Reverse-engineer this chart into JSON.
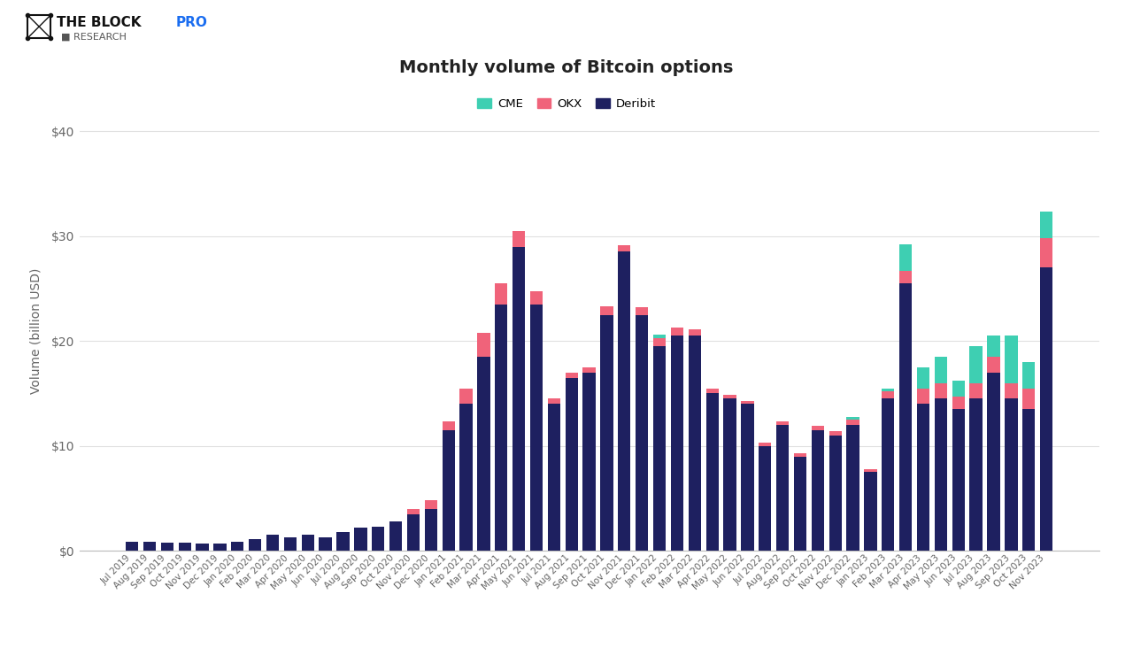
{
  "title": "Monthly volume of Bitcoin options",
  "ylabel": "Volume (billion USD)",
  "background_color": "#ffffff",
  "bar_color_deribit": "#1e2060",
  "bar_color_okx": "#f0637a",
  "bar_color_cme": "#3ecfb2",
  "categories": [
    "Jul 2019",
    "Aug 2019",
    "Sep 2019",
    "Oct 2019",
    "Nov 2019",
    "Dec 2019",
    "Jan 2020",
    "Feb 2020",
    "Mar 2020",
    "Apr 2020",
    "May 2020",
    "Jun 2020",
    "Jul 2020",
    "Aug 2020",
    "Sep 2020",
    "Oct 2020",
    "Nov 2020",
    "Dec 2020",
    "Jan 2021",
    "Feb 2021",
    "Mar 2021",
    "Apr 2021",
    "May 2021",
    "Jun 2021",
    "Jul 2021",
    "Aug 2021",
    "Sep 2021",
    "Oct 2021",
    "Nov 2021",
    "Dec 2021",
    "Jan 2022",
    "Feb 2022",
    "Mar 2022",
    "Apr 2022",
    "May 2022",
    "Jun 2022",
    "Jul 2022",
    "Aug 2022",
    "Sep 2022",
    "Oct 2022",
    "Nov 2022",
    "Dec 2022",
    "Jan 2023",
    "Feb 2023",
    "Mar 2023",
    "Apr 2023",
    "May 2023",
    "Jun 2023",
    "Jul 2023",
    "Aug 2023",
    "Sep 2023",
    "Oct 2023",
    "Nov 2023"
  ],
  "deribit": [
    0.9,
    0.85,
    0.8,
    0.75,
    0.7,
    0.65,
    0.9,
    1.1,
    1.5,
    1.3,
    1.5,
    1.3,
    1.8,
    2.2,
    2.3,
    2.8,
    3.5,
    4.0,
    11.5,
    14.0,
    18.5,
    23.5,
    29.0,
    23.5,
    14.0,
    16.5,
    17.0,
    22.5,
    28.5,
    22.5,
    19.5,
    20.5,
    20.5,
    15.0,
    14.5,
    14.0,
    10.0,
    12.0,
    9.0,
    11.5,
    11.0,
    12.0,
    7.5,
    14.5,
    25.5,
    14.0,
    14.5,
    13.5,
    14.5,
    17.0,
    14.5,
    13.5,
    27.0
  ],
  "okx": [
    0.0,
    0.0,
    0.0,
    0.0,
    0.0,
    0.0,
    0.0,
    0.0,
    0.0,
    0.0,
    0.0,
    0.0,
    0.0,
    0.0,
    0.0,
    0.0,
    0.5,
    0.8,
    0.8,
    1.5,
    2.3,
    2.0,
    1.5,
    1.2,
    0.5,
    0.5,
    0.5,
    0.8,
    0.6,
    0.7,
    0.8,
    0.8,
    0.6,
    0.5,
    0.4,
    0.3,
    0.3,
    0.3,
    0.3,
    0.4,
    0.4,
    0.5,
    0.3,
    0.7,
    1.2,
    1.5,
    1.5,
    1.2,
    1.5,
    1.5,
    1.5,
    2.0,
    2.8
  ],
  "cme": [
    0.0,
    0.0,
    0.0,
    0.0,
    0.0,
    0.0,
    0.0,
    0.0,
    0.0,
    0.0,
    0.0,
    0.0,
    0.0,
    0.0,
    0.0,
    0.0,
    0.0,
    0.0,
    0.0,
    0.0,
    0.0,
    0.0,
    0.0,
    0.0,
    0.0,
    0.0,
    0.0,
    0.0,
    0.0,
    0.0,
    0.3,
    0.0,
    0.0,
    0.0,
    0.0,
    0.0,
    0.0,
    0.0,
    0.0,
    0.0,
    0.0,
    0.3,
    0.0,
    0.3,
    2.5,
    2.0,
    2.5,
    1.5,
    3.5,
    2.0,
    4.5,
    2.5,
    2.5
  ],
  "ylim": [
    0,
    42
  ],
  "yticks": [
    0,
    10,
    20,
    30,
    40
  ],
  "ytick_labels": [
    "$0",
    "$10",
    "$20",
    "$30",
    "$40"
  ],
  "logo_text_block": "THE BLOCK",
  "logo_text_pro": "PRO",
  "logo_sub": "■ RESEARCH"
}
